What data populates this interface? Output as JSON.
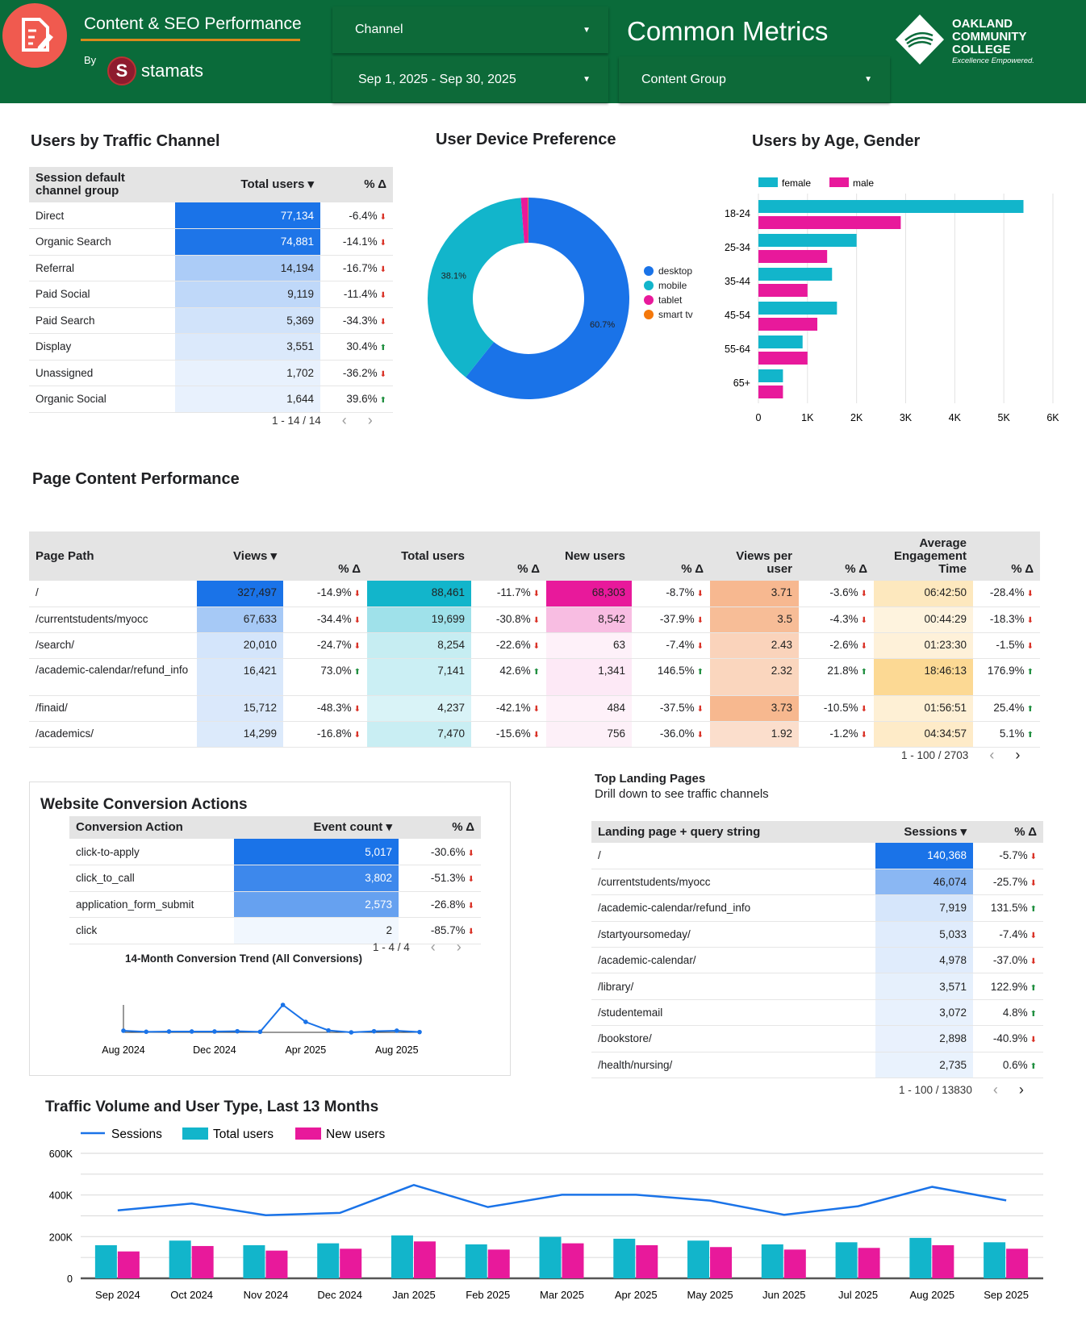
{
  "header": {
    "report_title": "Content & SEO Performance",
    "by_label": "By",
    "brand": "stamats",
    "brand_initial": "S",
    "channel_filter": "Channel",
    "date_range": "Sep 1, 2025 - Sep 30, 2025",
    "section_title": "Common Metrics",
    "content_group_filter": "Content Group",
    "college_name_lines": [
      "OAKLAND",
      "COMMUNITY",
      "COLLEGE"
    ],
    "college_tagline": "Excellence Empowered."
  },
  "colors": {
    "header_green": "#0a6b3a",
    "blue": "#1a73e8",
    "teal": "#12b5cb",
    "pink": "#e8199b",
    "orange": "#f4780b",
    "accent_red": "#f05a4f"
  },
  "traffic_channel": {
    "title": "Users by Traffic Channel",
    "columns": [
      "Session default channel group",
      "Total users ▾",
      "% Δ"
    ],
    "rows": [
      {
        "name": "Direct",
        "users": "77,134",
        "value": 77134,
        "delta": "-6.4%"
      },
      {
        "name": "Organic Search",
        "users": "74,881",
        "value": 74881,
        "delta": "-14.1%"
      },
      {
        "name": "Referral",
        "users": "14,194",
        "value": 14194,
        "delta": "-16.7%"
      },
      {
        "name": "Paid Social",
        "users": "9,119",
        "value": 9119,
        "delta": "-11.4%"
      },
      {
        "name": "Paid Search",
        "users": "5,369",
        "value": 5369,
        "delta": "-34.3%"
      },
      {
        "name": "Display",
        "users": "3,551",
        "value": 3551,
        "delta": "30.4%"
      },
      {
        "name": "Unassigned",
        "users": "1,702",
        "value": 1702,
        "delta": "-36.2%"
      },
      {
        "name": "Organic Social",
        "users": "1,644",
        "value": 1644,
        "delta": "39.6%"
      }
    ],
    "pagination": "1 - 14 / 14"
  },
  "device": {
    "title": "User Device Preference",
    "chart_data": {
      "type": "pie",
      "labels": [
        "desktop",
        "mobile",
        "tablet",
        "smart tv"
      ],
      "values": [
        60.7,
        38.1,
        1.1,
        0.1
      ],
      "data_labels": [
        "60.7%",
        "38.1%",
        "",
        ""
      ],
      "colors": [
        "#1a73e8",
        "#12b5cb",
        "#e8199b",
        "#f4780b"
      ],
      "legend": "right"
    }
  },
  "age_gender": {
    "title": "Users by Age, Gender",
    "chart_data": {
      "type": "bar",
      "orientation": "horizontal",
      "categories": [
        "18-24",
        "25-34",
        "35-44",
        "45-54",
        "55-64",
        "65+"
      ],
      "series": [
        {
          "name": "female",
          "color": "#12b5cb",
          "values": [
            5400,
            2000,
            1500,
            1600,
            900,
            500
          ]
        },
        {
          "name": "male",
          "color": "#e8199b",
          "values": [
            2900,
            1400,
            1000,
            1200,
            1000,
            500
          ]
        }
      ],
      "xlim": [
        0,
        6000
      ],
      "xticks": [
        "0",
        "1K",
        "2K",
        "3K",
        "4K",
        "5K",
        "6K"
      ],
      "legend": "top-left",
      "grid": true
    }
  },
  "page_content": {
    "title": "Page Content Performance",
    "columns": [
      "Page Path",
      "Views ▾",
      "% Δ",
      "Total users",
      "% Δ",
      "New users",
      "% Δ",
      "Views per user",
      "% Δ",
      "Average Engagement Time",
      "% Δ"
    ],
    "rows": [
      {
        "path": "/",
        "views": "327,497",
        "v": 327497,
        "views_d": "-14.9%",
        "users": "88,461",
        "u": 88461,
        "users_d": "-11.7%",
        "new": "68,303",
        "n": 68303,
        "new_d": "-8.7%",
        "vpu": "3.71",
        "p": 3.71,
        "vpu_d": "-3.6%",
        "eng": "06:42:50",
        "e": 24170,
        "eng_d": "-28.4%"
      },
      {
        "path": "/currentstudents/myocc",
        "views": "67,633",
        "v": 67633,
        "views_d": "-34.4%",
        "users": "19,699",
        "u": 19699,
        "users_d": "-30.8%",
        "new": "8,542",
        "n": 8542,
        "new_d": "-37.9%",
        "vpu": "3.5",
        "p": 3.5,
        "vpu_d": "-4.3%",
        "eng": "00:44:29",
        "e": 2669,
        "eng_d": "-18.3%"
      },
      {
        "path": "/search/",
        "views": "20,010",
        "v": 20010,
        "views_d": "-24.7%",
        "users": "8,254",
        "u": 8254,
        "users_d": "-22.6%",
        "new": "63",
        "n": 63,
        "new_d": "-7.4%",
        "vpu": "2.43",
        "p": 2.43,
        "vpu_d": "-2.6%",
        "eng": "01:23:30",
        "e": 5010,
        "eng_d": "-1.5%"
      },
      {
        "path": "/academic-calendar/refund_info",
        "views": "16,421",
        "v": 16421,
        "views_d": "73.0%",
        "users": "7,141",
        "u": 7141,
        "users_d": "42.6%",
        "new": "1,341",
        "n": 1341,
        "new_d": "146.5%",
        "vpu": "2.32",
        "p": 2.32,
        "vpu_d": "21.8%",
        "eng": "18:46:13",
        "e": 67573,
        "eng_d": "176.9%"
      },
      {
        "path": "/finaid/",
        "views": "15,712",
        "v": 15712,
        "views_d": "-48.3%",
        "users": "4,237",
        "u": 4237,
        "users_d": "-42.1%",
        "new": "484",
        "n": 484,
        "new_d": "-37.5%",
        "vpu": "3.73",
        "p": 3.73,
        "vpu_d": "-10.5%",
        "eng": "01:56:51",
        "e": 7011,
        "eng_d": "25.4%"
      },
      {
        "path": "/academics/",
        "views": "14,299",
        "v": 14299,
        "views_d": "-16.8%",
        "users": "7,470",
        "u": 7470,
        "users_d": "-15.6%",
        "new": "756",
        "n": 756,
        "new_d": "-36.0%",
        "vpu": "1.92",
        "p": 1.92,
        "vpu_d": "-1.2%",
        "eng": "04:34:57",
        "e": 16497,
        "eng_d": "5.1%"
      }
    ],
    "pagination": "1 - 100 / 2703"
  },
  "conversions": {
    "title": "Website Conversion Actions",
    "columns": [
      "Conversion Action",
      "Event count ▾",
      "% Δ"
    ],
    "rows": [
      {
        "name": "click-to-apply",
        "count": "5,017",
        "value": 5017,
        "delta": "-30.6%"
      },
      {
        "name": "click_to_call",
        "count": "3,802",
        "value": 3802,
        "delta": "-51.3%"
      },
      {
        "name": "application_form_submit",
        "count": "2,573",
        "value": 2573,
        "delta": "-26.8%"
      },
      {
        "name": "click",
        "count": "2",
        "value": 2,
        "delta": "-85.7%"
      }
    ],
    "pagination": "1 - 4 / 4",
    "trend": {
      "title": "14-Month Conversion Trend (All Conversions)",
      "chart_data": {
        "type": "line",
        "x": [
          "Aug 2024",
          "Sep 2024",
          "Oct 2024",
          "Nov 2024",
          "Dec 2024",
          "Jan 2025",
          "Feb 2025",
          "Mar 2025",
          "Apr 2025",
          "May 2025",
          "Jun 2025",
          "Jul 2025",
          "Aug 2025",
          "Sep 2025"
        ],
        "values": [
          6,
          2,
          3,
          3,
          3,
          4,
          2,
          100,
          38,
          7,
          0,
          4,
          6,
          1
        ],
        "value_note_units": "relative (no y-axis shown)",
        "xtick_labels": [
          "Aug 2024",
          "Oct 2024",
          "Dec 2024",
          "Feb 2025",
          "Apr 2025",
          "Jun 2025",
          "Aug 2025"
        ]
      }
    }
  },
  "landing": {
    "title": "Top Landing Pages",
    "subtitle": "Drill down to see traffic channels",
    "columns": [
      "Landing page + query string",
      "Sessions ▾",
      "% Δ"
    ],
    "rows": [
      {
        "name": "/",
        "sessions": "140,368",
        "value": 140368,
        "delta": "-5.7%"
      },
      {
        "name": "/currentstudents/myocc",
        "sessions": "46,074",
        "value": 46074,
        "delta": "-25.7%"
      },
      {
        "name": "/academic-calendar/refund_info",
        "sessions": "7,919",
        "value": 7919,
        "delta": "131.5%"
      },
      {
        "name": "/startyoursomeday/",
        "sessions": "5,033",
        "value": 5033,
        "delta": "-7.4%"
      },
      {
        "name": "/academic-calendar/",
        "sessions": "4,978",
        "value": 4978,
        "delta": "-37.0%"
      },
      {
        "name": "/library/",
        "sessions": "3,571",
        "value": 3571,
        "delta": "122.9%"
      },
      {
        "name": "/studentemail",
        "sessions": "3,072",
        "value": 3072,
        "delta": "4.8%"
      },
      {
        "name": "/bookstore/",
        "sessions": "2,898",
        "value": 2898,
        "delta": "-40.9%"
      },
      {
        "name": "/health/nursing/",
        "sessions": "2,735",
        "value": 2735,
        "delta": "0.6%"
      }
    ],
    "pagination": "1 - 100 / 13830"
  },
  "traffic_volume": {
    "title": "Traffic Volume and User Type, Last 13 Months",
    "chart_data": {
      "type": "bar",
      "categories": [
        "Sep 2024",
        "Oct 2024",
        "Nov 2024",
        "Dec 2024",
        "Jan 2025",
        "Feb 2025",
        "Mar 2025",
        "Apr 2025",
        "May 2025",
        "Jun 2025",
        "Jul 2025",
        "Aug 2025",
        "Sep 2025"
      ],
      "series": [
        {
          "name": "Sessions",
          "type": "line",
          "color": "#1a73e8",
          "values": [
            326000,
            359000,
            303000,
            314000,
            448000,
            342000,
            401000,
            401000,
            373000,
            305000,
            346000,
            439000,
            374000
          ]
        },
        {
          "name": "Total users",
          "type": "bar",
          "color": "#12b5cb",
          "values": [
            159000,
            181000,
            159000,
            168000,
            206000,
            163000,
            199000,
            190000,
            181000,
            163000,
            173000,
            194000,
            173000
          ]
        },
        {
          "name": "New users",
          "type": "bar",
          "color": "#e8199b",
          "values": [
            129000,
            155000,
            133000,
            142000,
            177000,
            138000,
            168000,
            159000,
            150000,
            138000,
            146000,
            159000,
            142000
          ]
        }
      ],
      "ylim": [
        0,
        600000
      ],
      "yticks": [
        "0",
        "200K",
        "400K",
        "600K"
      ],
      "legend": "top-left",
      "grid": true
    }
  }
}
